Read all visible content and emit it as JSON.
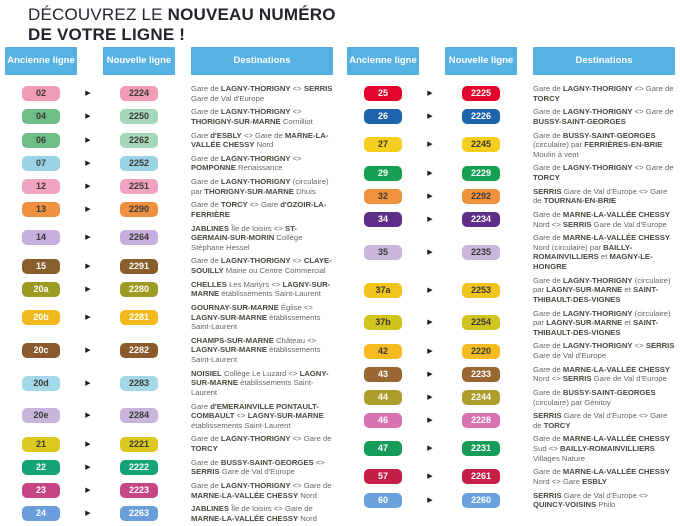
{
  "title": {
    "intro": "DÉCOUVREZ LE",
    "bold1": "NOUVEAU NUMÉRO",
    "bold2": "DE VOTRE LIGNE !"
  },
  "header": {
    "old_line": "Ancienne ligne",
    "new_line": "Nouvelle ligne",
    "destinations": "Destinations"
  },
  "arrow_icon": "▶",
  "colors": {
    "header_bg": "#57b2e4",
    "header_text": "#ffffff",
    "title_text": "#23252d",
    "dest_text": "#6b675f",
    "dest_bold_text": "#4c473e",
    "badge_dark_text": "#3a3a33",
    "badge_light_text": "#ffffff",
    "arrow": "#1d1d1b",
    "background": "#ffffff"
  },
  "tables": [
    {
      "id": "left",
      "rows": [
        {
          "old": "02",
          "new": "2224",
          "bg": "#f19cb5",
          "fg": "dark",
          "dest": "Gare de LAGNY-THORIGNY <> SERRIS Gare de Val d'Europe"
        },
        {
          "old": "04",
          "new": "2250",
          "bg": "#6fbe87",
          "new_bg": "#a6d7b8",
          "fg": "dark",
          "dest": "Gare de LAGNY-THORIGNY <> THORIGNY-SUR-MARNE Cornilliot"
        },
        {
          "old": "06",
          "new": "2262",
          "bg": "#6fbe87",
          "new_bg": "#a6d7b8",
          "fg": "dark",
          "dest": "Gare d'ESBLY <> Gare de MARNE-LA-VALLÉE CHESSY Nord"
        },
        {
          "old": "07",
          "new": "2252",
          "bg": "#9bd3e6",
          "fg": "dark",
          "dest": "Gare de LAGNY-THORIGNY <> POMPONNE Renaissance"
        },
        {
          "old": "12",
          "new": "2251",
          "bg": "#f1a3c2",
          "fg": "dark",
          "dest": "Gare de LAGNY-THORIGNY (circulaire) par THORIGNY-SUR-MARNE Dhuis"
        },
        {
          "old": "13",
          "new": "2290",
          "bg": "#ef9140",
          "fg": "dark",
          "dest": "Gare de TORCY <> Gare d'OZOIR-LA-FERRIÈRE"
        },
        {
          "old": "14",
          "new": "2264",
          "bg": "#c6aede",
          "fg": "dark",
          "dest": "JABLINES Île de loisirs <> ST-GERMAIN-SUR-MORIN Collège Stéphane Hessel"
        },
        {
          "old": "15",
          "new": "2291",
          "bg": "#8a5e2b",
          "fg": "light",
          "dest": "Gare de LAGNY-THORIGNY <> CLAYE-SOUILLY Mairie ou Centre Commercial"
        },
        {
          "old": "20a",
          "new": "2280",
          "bg": "#9c9a20",
          "fg": "light",
          "dest": "CHELLES Les Martyrs <> LAGNY-SUR-MARNE établissements Saint-Laurent"
        },
        {
          "old": "20b",
          "new": "2281",
          "bg": "#f2b91e",
          "fg": "light",
          "dest": "GOURNAY-SUR-MARNE Église <> LAGNY-SUR-MARNE établissements Saint-Laurent"
        },
        {
          "old": "20c",
          "new": "2282",
          "bg": "#8a5a2c",
          "fg": "light",
          "dest": "CHAMPS-SUR-MARNE Château <> LAGNY-SUR-MARNE établissements Saint-Laurent"
        },
        {
          "old": "20d",
          "new": "2283",
          "bg": "#a2d8e8",
          "fg": "dark",
          "dest": "NOISIEL Collège Le Luzard <> LAGNY-SUR-MARNE établissements Saint-Laurent"
        },
        {
          "old": "20e",
          "new": "2284",
          "bg": "#c9b4dc",
          "fg": "dark",
          "dest": "Gare d'EMERAINVILLE PONTAULT-COMBAULT <> LAGNY-SUR-MARNE établissements Saint-Laurent"
        },
        {
          "old": "21",
          "new": "2221",
          "bg": "#dcc91f",
          "fg": "dark",
          "dest": "Gare de LAGNY-THORIGNY <> Gare de TORCY"
        },
        {
          "old": "22",
          "new": "2222",
          "bg": "#13a377",
          "fg": "light",
          "dest": "Gare de BUSSY-SAINT-GEORGES <> SERRIS Gare de Val d'Europe"
        },
        {
          "old": "23",
          "new": "2223",
          "bg": "#c54585",
          "fg": "light",
          "dest": "Gare de LAGNY-THORIGNY <> Gare de MARNE-LA-VALLÉE CHESSY Nord"
        },
        {
          "old": "24",
          "new": "2263",
          "bg": "#6a9edb",
          "fg": "light",
          "dest": "JABLINES Île de loisirs <> Gare de MARNE-LA-VALLÉE CHESSY Nord"
        }
      ]
    },
    {
      "id": "right",
      "rows": [
        {
          "old": "25",
          "new": "2225",
          "bg": "#e2062c",
          "fg": "light",
          "dest": "Gare de LAGNY-THORIGNY <> Gare de TORCY"
        },
        {
          "old": "26",
          "new": "2226",
          "bg": "#1f63af",
          "fg": "light",
          "dest": "Gare de LAGNY-THORIGNY <> Gare de BUSSY-SAINT-GEORGES"
        },
        {
          "old": "27",
          "new": "2245",
          "bg": "#f5ce1e",
          "fg": "dark",
          "dest": "Gare de BUSSY-SAINT-GEORGES (circulaire) par FERRIÈRES-EN-BRIE Moulin à vent"
        },
        {
          "old": "29",
          "new": "2229",
          "bg": "#15a053",
          "fg": "light",
          "dest": "Gare de LAGNY-THORIGNY <> Gare de TORCY"
        },
        {
          "old": "32",
          "new": "2292",
          "bg": "#f0923e",
          "fg": "dark",
          "dest": "SERRIS Gare de Val d'Europe <> Gare de TOURNAN-EN-BRIE"
        },
        {
          "old": "34",
          "new": "2234",
          "bg": "#5d2d87",
          "fg": "light",
          "dest": "Gare de MARNE-LA-VALLÉE CHESSY Nord <> SERRIS Gare de Val d'Europe"
        },
        {
          "old": "35",
          "new": "2235",
          "bg": "#cab6dd",
          "fg": "dark",
          "dest": "Gare de MARNE-LA-VALLÉE CHESSY Nord (circulaire) par BAILLY-ROMAINVILLIERS et MAGNY-LE-HONGRE"
        },
        {
          "old": "37a",
          "new": "2253",
          "bg": "#f2c41e",
          "fg": "dark",
          "dest": "Gare de LAGNY-THORIGNY (circulaire) par LAGNY-SUR-MARNE et SAINT-THIBAULT-DES-VIGNES"
        },
        {
          "old": "37b",
          "new": "2254",
          "bg": "#d2c41e",
          "fg": "dark",
          "dest": "Gare de LAGNY-THORIGNY (circulaire) par LAGNY-SUR-MARNE et SAINT-THIBAULT-DES-VIGNES"
        },
        {
          "old": "42",
          "new": "2220",
          "bg": "#f5bb20",
          "fg": "dark",
          "dest": "Gare de LAGNY-THORIGNY <> SERRIS Gare de Val d'Europe"
        },
        {
          "old": "43",
          "new": "2233",
          "bg": "#9a6733",
          "fg": "light",
          "dest": "Gare de MARNE-LA-VALLÉE CHESSY Nord <> SERRIS Gare de Val d'Europe"
        },
        {
          "old": "44",
          "new": "2244",
          "bg": "#ac9d2c",
          "fg": "light",
          "dest": "Gare de BUSSY-SAINT-GEORGES (circulaire) par Génitoy"
        },
        {
          "old": "46",
          "new": "2228",
          "bg": "#d873b2",
          "fg": "light",
          "dest": "SERRIS Gare de Val d'Europe <> Gare de TORCY"
        },
        {
          "old": "47",
          "new": "2231",
          "bg": "#169c59",
          "fg": "light",
          "dest": "Gare de MARNE-LA-VALLÉE CHESSY Sud <> BAILLY-ROMAINVILLIERS Villages Nature"
        },
        {
          "old": "57",
          "new": "2261",
          "bg": "#c41d46",
          "fg": "light",
          "dest": "Gare de MARNE-LA-VALLÉE CHESSY Nord <> Gare ESBLY"
        },
        {
          "old": "60",
          "new": "2260",
          "bg": "#6aa2dc",
          "fg": "light",
          "dest": "SERRIS Gare de Val d'Europe <> QUINCY-VOISINS Philo"
        }
      ]
    }
  ]
}
